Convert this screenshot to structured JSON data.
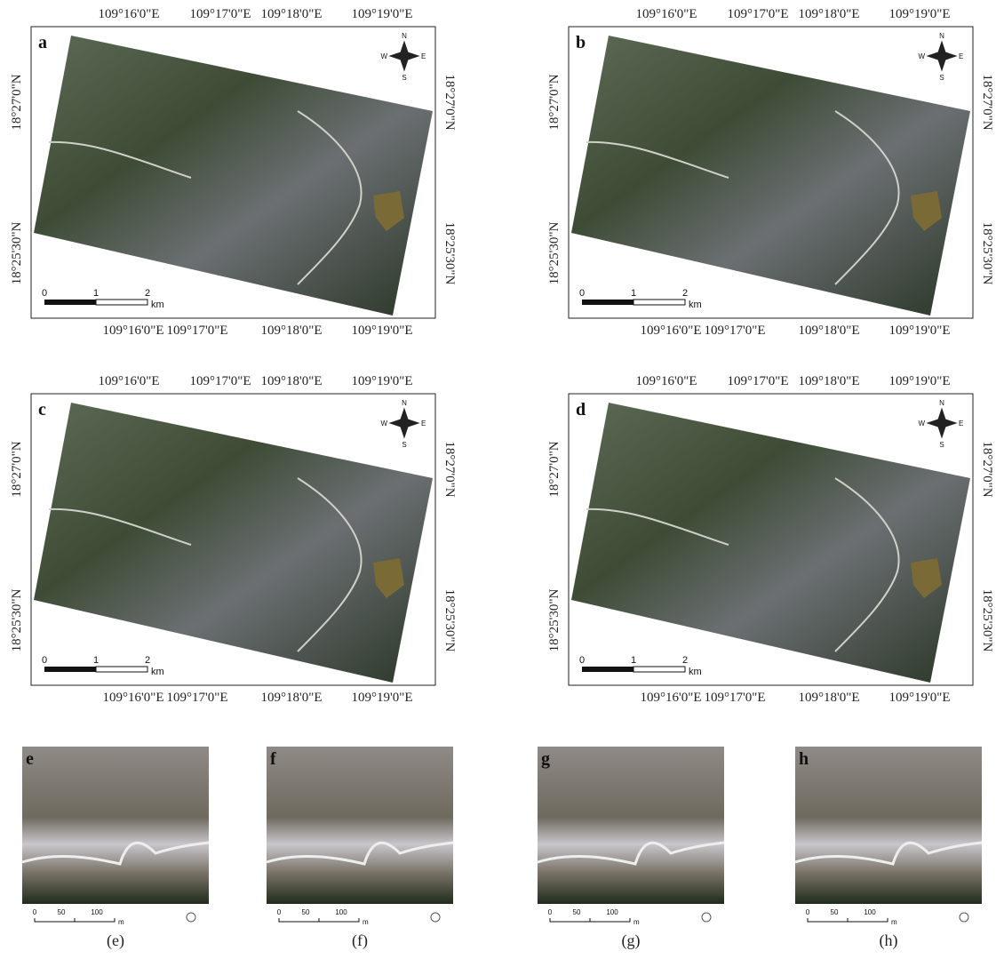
{
  "maps": [
    {
      "label": "a",
      "top_lon": [
        "109°16'0\"E",
        "109°17'0\"E",
        "109°18'0\"E",
        "109°19'0\"E"
      ],
      "bottom_lon": [
        "109°16'0\"E",
        "109°17'0\"E",
        "109°18'0\"E",
        "109°19'0\"E"
      ],
      "left_lat": [
        "18°27'0\"N",
        "18°25'30\"N"
      ],
      "right_lat": [
        "18°27'0\"N",
        "18°25'30\"N"
      ],
      "compass": [
        "N",
        "W",
        "E",
        "S"
      ],
      "scale": [
        "0",
        "1",
        "2",
        "km"
      ]
    },
    {
      "label": "b",
      "top_lon": [
        "109°16'0\"E",
        "109°17'0\"E",
        "109°18'0\"E",
        "109°19'0\"E"
      ],
      "bottom_lon": [
        "109°16'0\"E",
        "109°17'0\"E",
        "109°18'0\"E",
        "109°19'0\"E"
      ],
      "left_lat": [
        "18°27'0\"N",
        "18°25'30\"N"
      ],
      "right_lat": [
        "18°27'0\"N",
        "18°25'30\"N"
      ],
      "compass": [
        "N",
        "W",
        "E",
        "S"
      ],
      "scale": [
        "0",
        "1",
        "2",
        "km"
      ]
    },
    {
      "label": "c",
      "top_lon": [
        "109°16'0\"E",
        "109°17'0\"E",
        "109°18'0\"E",
        "109°19'0\"E"
      ],
      "bottom_lon": [
        "109°16'0\"E",
        "109°17'0\"E",
        "109°18'0\"E",
        "109°19'0\"E"
      ],
      "left_lat": [
        "18°27'0\"N",
        "18°25'30\"N"
      ],
      "right_lat": [
        "18°27'0\"N",
        "18°25'30\"N"
      ],
      "compass": [
        "N",
        "W",
        "E",
        "S"
      ],
      "scale": [
        "0",
        "1",
        "2",
        "km"
      ]
    },
    {
      "label": "d",
      "top_lon": [
        "109°16'0\"E",
        "109°17'0\"E",
        "109°18'0\"E",
        "109°19'0\"E"
      ],
      "bottom_lon": [
        "109°16'0\"E",
        "109°17'0\"E",
        "109°18'0\"E",
        "109°19'0\"E"
      ],
      "left_lat": [
        "18°27'0\"N",
        "18°25'30\"N"
      ],
      "right_lat": [
        "18°27'0\"N",
        "18°25'30\"N"
      ],
      "compass": [
        "N",
        "W",
        "E",
        "S"
      ],
      "scale": [
        "0",
        "1",
        "2",
        "km"
      ]
    }
  ],
  "insets": [
    {
      "label": "e",
      "scale": [
        "0",
        "50",
        "100",
        "m"
      ],
      "caption": "(e)"
    },
    {
      "label": "f",
      "scale": [
        "0",
        "50",
        "100",
        "m"
      ],
      "caption": "(f)"
    },
    {
      "label": "g",
      "scale": [
        "0",
        "50",
        "100",
        "m"
      ],
      "caption": "(g)"
    },
    {
      "label": "h",
      "scale": [
        "0",
        "50",
        "100",
        "m"
      ],
      "caption": "(h)"
    }
  ]
}
